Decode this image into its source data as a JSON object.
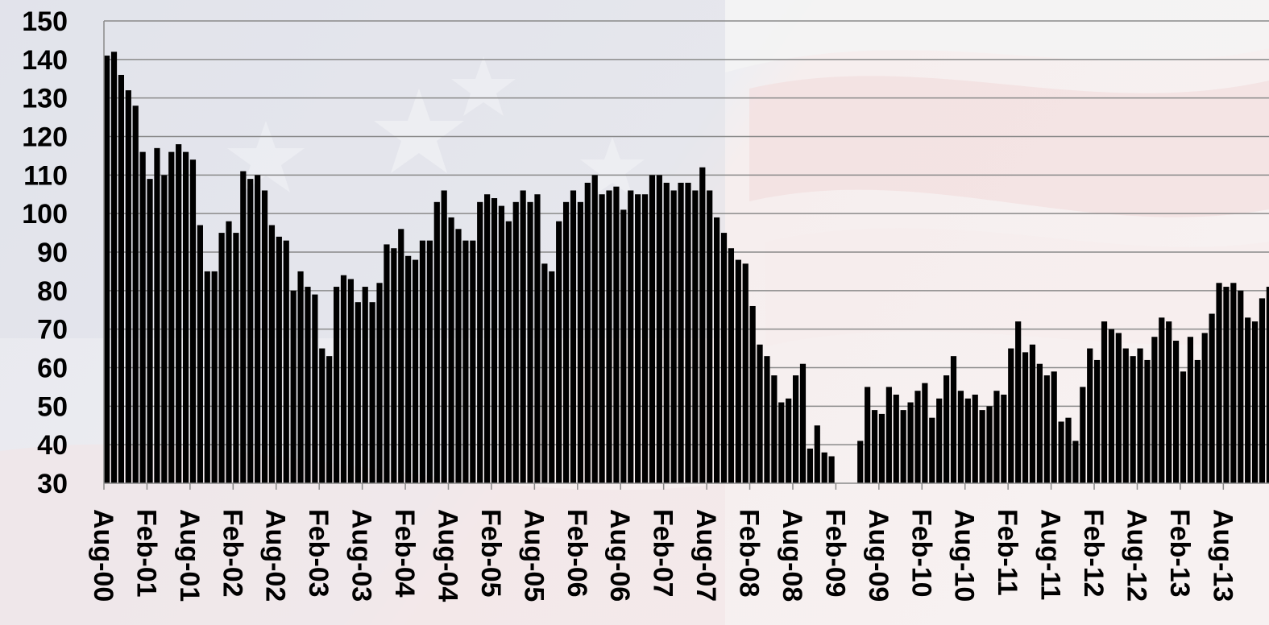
{
  "chart_data": {
    "type": "bar",
    "title": "",
    "xlabel": "",
    "ylabel": "",
    "ylim": [
      30,
      150
    ],
    "yticks": [
      30,
      40,
      50,
      60,
      70,
      80,
      90,
      100,
      110,
      120,
      130,
      140,
      150
    ],
    "grid": true,
    "bar_color": "#000000",
    "grid_color": "#8a8a8a",
    "x_start": "Aug-00",
    "x_tick_labels": [
      "Aug-00",
      "Feb-01",
      "Aug-01",
      "Feb-02",
      "Aug-02",
      "Feb-03",
      "Aug-03",
      "Feb-04",
      "Aug-04",
      "Feb-05",
      "Aug-05",
      "Feb-06",
      "Aug-06",
      "Feb-07",
      "Aug-07",
      "Feb-08",
      "Aug-08",
      "Feb-09",
      "Aug-09",
      "Feb-10",
      "Aug-10",
      "Feb-11",
      "Aug-11",
      "Feb-12",
      "Aug-12",
      "Feb-13",
      "Aug-13"
    ],
    "values": [
      141,
      142,
      136,
      132,
      128,
      116,
      109,
      117,
      110,
      116,
      118,
      116,
      114,
      97,
      85,
      85,
      95,
      98,
      95,
      111,
      109,
      110,
      106,
      97,
      94,
      93,
      80,
      85,
      81,
      79,
      65,
      63,
      81,
      84,
      83,
      77,
      81,
      77,
      82,
      92,
      91,
      96,
      89,
      88,
      93,
      93,
      103,
      106,
      99,
      96,
      93,
      93,
      103,
      105,
      104,
      102,
      98,
      103,
      106,
      103,
      105,
      87,
      85,
      98,
      103,
      106,
      103,
      108,
      110,
      105,
      106,
      107,
      101,
      106,
      105,
      105,
      110,
      110,
      108,
      106,
      108,
      108,
      106,
      112,
      106,
      99,
      95,
      91,
      88,
      87,
      76,
      66,
      63,
      58,
      51,
      52,
      58,
      61,
      39,
      45,
      38,
      37,
      30,
      30,
      30,
      41,
      55,
      49,
      48,
      55,
      53,
      49,
      51,
      54,
      56,
      47,
      52,
      58,
      63,
      54,
      52,
      53,
      49,
      50,
      54,
      53,
      65,
      72,
      64,
      66,
      61,
      58,
      59,
      46,
      47,
      41,
      55,
      65,
      62,
      72,
      70,
      69,
      65,
      63,
      65,
      62,
      68,
      73,
      72,
      67,
      59,
      68,
      62,
      69,
      74,
      82,
      81,
      82,
      80,
      73,
      72,
      78,
      81
    ]
  }
}
